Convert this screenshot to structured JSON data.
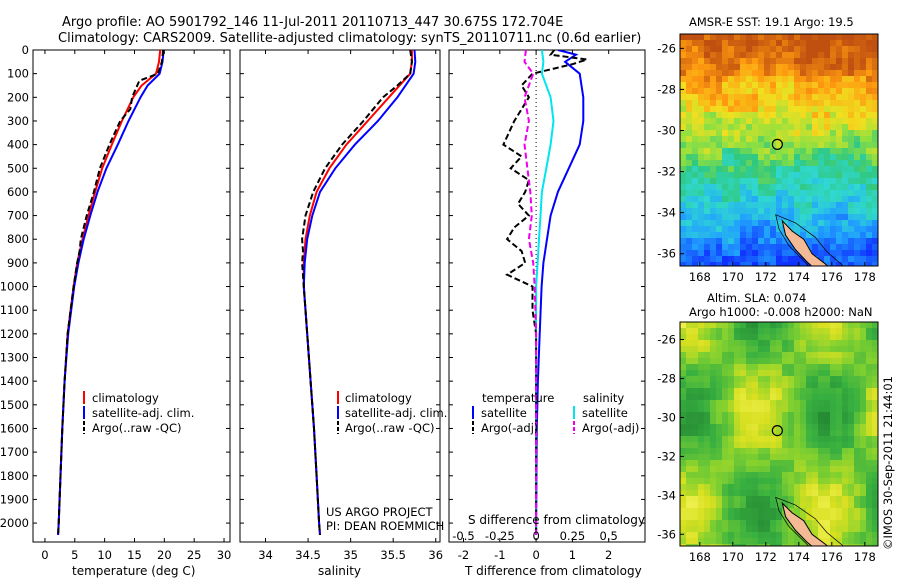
{
  "figure": {
    "title_line1": "Argo profile: AO 5901792_146 11-Jul-2011 20110713_447 30.675S 172.704E",
    "title_line2": "Climatology: CARS2009. Satellite-adjusted climatology: synTS_20110711.nc (0.6d earlier)",
    "project_line1": "US ARGO PROJECT",
    "project_line2": "PI: DEAN ROEMMICH",
    "credit": "©IMOS 30-Sep-2011 21:44:01"
  },
  "colors": {
    "climatology": "#ff0000",
    "satellite": "#0000ff",
    "argo": "#000000",
    "satellite_s": "#00e5ee",
    "argo_s": "#ee00ee"
  },
  "chart_data": [
    {
      "type": "line",
      "title": "",
      "xlabel": "temperature (deg C)",
      "xlim": [
        -2,
        31
      ],
      "ylim": [
        2080,
        0
      ],
      "xticks": [
        0,
        5,
        10,
        15,
        20,
        25,
        30
      ],
      "ytick_labels": [
        "0",
        "100",
        "200",
        "300",
        "400",
        "500",
        "600",
        "700",
        "800",
        "900",
        "1000",
        "1100",
        "1200",
        "1300",
        "1400",
        "1500",
        "1600",
        "1700",
        "1800",
        "1900",
        "2000"
      ],
      "yticks": [
        0,
        100,
        200,
        300,
        400,
        500,
        600,
        700,
        800,
        900,
        1000,
        1100,
        1200,
        1300,
        1400,
        1500,
        1600,
        1700,
        1800,
        1900,
        2000
      ],
      "legend": [
        "climatology",
        "satellite-adj. clim.",
        "Argo(..raw -QC)"
      ],
      "series": [
        {
          "name": "climatology",
          "depth": [
            0,
            50,
            100,
            150,
            200,
            300,
            400,
            500,
            600,
            700,
            800,
            900,
            1000,
            1200,
            1400,
            1600,
            1800,
            2000,
            2050
          ],
          "values": [
            19.3,
            19.1,
            18.6,
            16.2,
            14.8,
            12.9,
            11.2,
            9.6,
            8.4,
            7.3,
            6.3,
            5.4,
            4.8,
            3.8,
            3.3,
            2.9,
            2.6,
            2.3,
            2.2
          ]
        },
        {
          "name": "satellite-adj. clim.",
          "depth": [
            0,
            50,
            100,
            150,
            200,
            300,
            400,
            500,
            600,
            700,
            800,
            900,
            1000,
            1200,
            1400,
            1600,
            1800,
            2000,
            2050
          ],
          "values": [
            19.9,
            19.7,
            19.2,
            17.2,
            16.0,
            14.0,
            12.2,
            10.3,
            8.8,
            7.6,
            6.5,
            5.6,
            4.9,
            3.9,
            3.3,
            2.9,
            2.6,
            2.3,
            2.2
          ]
        },
        {
          "name": "Argo(..raw -QC)",
          "depth": [
            0,
            50,
            100,
            130,
            200,
            250,
            300,
            400,
            500,
            600,
            700,
            800,
            850,
            900,
            1000,
            1200,
            1400,
            1600,
            1800,
            2000,
            2050
          ],
          "values": [
            19.8,
            19.6,
            18.9,
            15.8,
            14.6,
            14.3,
            12.6,
            10.8,
            9.2,
            8.2,
            7.0,
            6.0,
            5.8,
            5.4,
            4.8,
            3.8,
            3.3,
            2.9,
            2.6,
            2.3,
            2.2
          ]
        }
      ]
    },
    {
      "type": "line",
      "xlabel": "salinity",
      "xlim": [
        33.7,
        36.05
      ],
      "ylim": [
        2080,
        0
      ],
      "xticks": [
        34,
        34.5,
        35,
        35.5,
        36
      ],
      "legend": [
        "climatology",
        "satellite-adj. clim.",
        "Argo(..raw -QC)"
      ],
      "series": [
        {
          "name": "climatology",
          "depth": [
            0,
            50,
            100,
            200,
            300,
            400,
            500,
            600,
            700,
            800,
            900,
            1000,
            1200,
            1400,
            1600,
            1800,
            2000,
            2050
          ],
          "values": [
            35.72,
            35.72,
            35.7,
            35.45,
            35.2,
            34.95,
            34.75,
            34.6,
            34.52,
            34.47,
            34.45,
            34.45,
            34.49,
            34.53,
            34.57,
            34.6,
            34.63,
            34.64
          ]
        },
        {
          "name": "satellite-adj. clim.",
          "depth": [
            0,
            50,
            100,
            200,
            300,
            400,
            500,
            600,
            700,
            800,
            900,
            1000,
            1200,
            1400,
            1600,
            1800,
            2000,
            2050
          ],
          "values": [
            35.75,
            35.76,
            35.74,
            35.55,
            35.32,
            35.05,
            34.82,
            34.64,
            34.55,
            34.49,
            34.46,
            34.45,
            34.49,
            34.53,
            34.57,
            34.6,
            34.63,
            34.64
          ]
        },
        {
          "name": "Argo(..raw -QC)",
          "depth": [
            0,
            50,
            100,
            150,
            200,
            300,
            400,
            500,
            600,
            700,
            800,
            850,
            900,
            1000,
            1200,
            1400,
            1600,
            1800,
            2000,
            2050
          ],
          "values": [
            35.7,
            35.72,
            35.7,
            35.55,
            35.38,
            35.15,
            34.9,
            34.7,
            34.56,
            34.47,
            34.43,
            34.44,
            34.43,
            34.45,
            34.49,
            34.53,
            34.57,
            34.6,
            34.63,
            34.64
          ]
        }
      ]
    },
    {
      "type": "line",
      "xlabel": "T difference from climatology",
      "toplabel": "S difference from climatology",
      "xlim": [
        -2.4,
        3.0
      ],
      "ylim": [
        2080,
        0
      ],
      "xticks": [
        -2,
        -1,
        0,
        1,
        2
      ],
      "s_ticks": [
        -0.5,
        -0.25,
        0,
        0.25,
        0.5
      ],
      "s_tick_labels": [
        "-0.5",
        "-0.25",
        "0",
        "0.25",
        "0.5"
      ],
      "legend_headers": [
        "temperature",
        "salinity"
      ],
      "legend": [
        "satellite",
        "Argo(-adj)",
        "satellite",
        "Argo(-adj)"
      ],
      "series": [
        {
          "name": "satellite (T)",
          "depth": [
            0,
            20,
            50,
            100,
            200,
            300,
            400,
            500,
            600,
            700,
            800,
            900,
            1000,
            1200,
            1400,
            1600,
            1800,
            2000,
            2050
          ],
          "values": [
            0.6,
            1.1,
            0.8,
            1.2,
            1.3,
            1.3,
            1.2,
            0.9,
            0.6,
            0.4,
            0.3,
            0.2,
            0.15,
            0.1,
            0.05,
            0.02,
            0.01,
            0.0,
            0.0
          ]
        },
        {
          "name": "satellite (S)",
          "depth": [
            0,
            50,
            100,
            200,
            300,
            400,
            500,
            600,
            700,
            800,
            900,
            1000,
            1200,
            1400,
            1600,
            1800,
            2000,
            2050
          ],
          "values": [
            0.04,
            0.05,
            0.04,
            0.1,
            0.12,
            0.1,
            0.07,
            0.04,
            0.03,
            0.02,
            0.01,
            0.0,
            0.0,
            0.0,
            0.0,
            0.0,
            0.0,
            0.0
          ]
        },
        {
          "name": "Argo(-adj) (T)",
          "depth": [
            0,
            20,
            40,
            60,
            100,
            150,
            200,
            300,
            400,
            450,
            500,
            550,
            600,
            650,
            700,
            750,
            800,
            850,
            900,
            950,
            1000,
            1100,
            1200,
            1400,
            1600,
            1800,
            2000,
            2050
          ],
          "values": [
            0.5,
            0.4,
            1.4,
            1.0,
            -0.1,
            -0.4,
            -0.2,
            -0.6,
            -0.9,
            -0.4,
            -0.7,
            -0.2,
            -0.3,
            -0.5,
            -0.2,
            -0.6,
            -0.8,
            -0.4,
            -0.3,
            -0.8,
            -0.1,
            -0.1,
            0.0,
            0.0,
            0.0,
            0.0,
            0.0,
            0.0
          ]
        },
        {
          "name": "Argo(-adj) (S)",
          "depth": [
            0,
            50,
            100,
            200,
            300,
            400,
            500,
            600,
            700,
            800,
            900,
            1000,
            1200,
            1400,
            1600,
            1800,
            2000,
            2050
          ],
          "values": [
            -0.07,
            -0.08,
            -0.02,
            -0.08,
            -0.05,
            -0.08,
            -0.06,
            -0.04,
            -0.03,
            -0.05,
            -0.02,
            -0.01,
            0.0,
            0.0,
            0.0,
            0.0,
            0.0,
            0.0
          ]
        }
      ]
    },
    {
      "type": "heatmap",
      "title": "AMSR-E SST: 19.1  Argo: 19.5",
      "xticks": [
        168,
        170,
        172,
        174,
        176,
        178
      ],
      "yticks": [
        -26,
        -28,
        -30,
        -32,
        -34,
        -36
      ],
      "xlim": [
        166.8,
        178.8
      ],
      "ylim": [
        -25.3,
        -36.6
      ],
      "marker": {
        "lon": 172.7,
        "lat": -30.675
      }
    },
    {
      "type": "heatmap",
      "title_line1": "Altim. SLA: 0.074",
      "title_line2": "Argo h1000: -0.008 h2000: NaN",
      "xticks": [
        168,
        170,
        172,
        174,
        176,
        178
      ],
      "yticks": [
        -26,
        -28,
        -30,
        -32,
        -34,
        -36
      ],
      "xlim": [
        166.8,
        178.8
      ],
      "ylim": [
        -25.1,
        -36.6
      ],
      "marker": {
        "lon": 172.7,
        "lat": -30.675
      }
    }
  ]
}
